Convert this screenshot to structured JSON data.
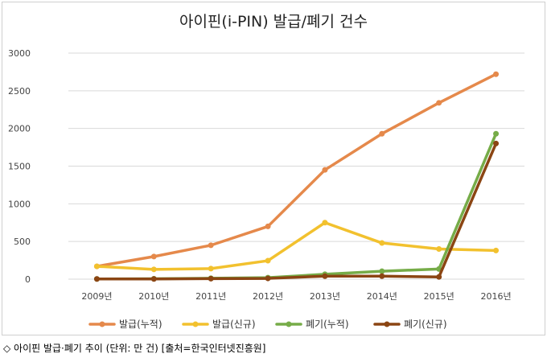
{
  "caption": "◇ 아이핀 발급·폐기 추이 (단위: 만 건) [출처=한국인터넷진흥원]",
  "chart_data": {
    "type": "line",
    "title": "아이핀(i-PIN) 발급/폐기 건수",
    "xlabel": "",
    "ylabel": "",
    "categories": [
      "2009년",
      "2010년",
      "2011년",
      "2012년",
      "2013년",
      "2014년",
      "2015년",
      "2016년"
    ],
    "ylim": [
      0,
      3000
    ],
    "yticks": [
      0,
      500,
      1000,
      1500,
      2000,
      2500,
      3000
    ],
    "grid": true,
    "legend_position": "bottom",
    "series": [
      {
        "name": "발급(누적)",
        "color": "#E5894B",
        "values": [
          170,
          300,
          450,
          700,
          1450,
          1930,
          2340,
          2720
        ]
      },
      {
        "name": "발급(신규)",
        "color": "#F2C12E",
        "values": [
          170,
          130,
          140,
          245,
          750,
          480,
          400,
          380
        ]
      },
      {
        "name": "폐기(누적)",
        "color": "#76AC48",
        "values": [
          3,
          5,
          12,
          20,
          65,
          105,
          135,
          1930
        ]
      },
      {
        "name": "폐기(신규)",
        "color": "#8B4513",
        "values": [
          3,
          3,
          7,
          10,
          40,
          40,
          30,
          1800
        ]
      }
    ]
  }
}
